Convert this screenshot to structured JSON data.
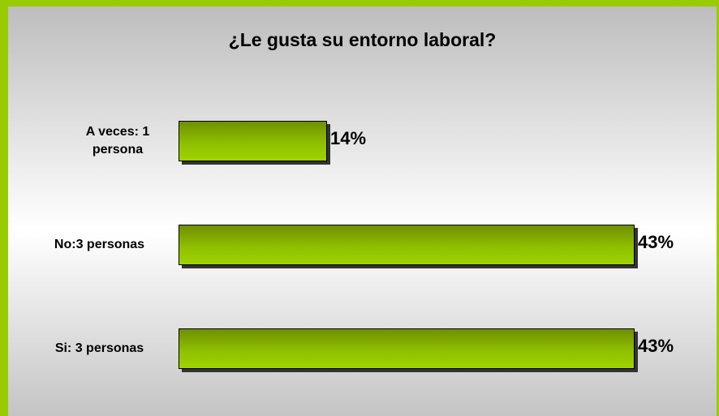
{
  "chart_data": {
    "type": "bar",
    "orientation": "horizontal",
    "title": "¿Le gusta su entorno laboral?",
    "categories": [
      "A veces: 1 persona",
      "No:3 personas",
      "Si: 3 personas"
    ],
    "values": [
      14,
      43,
      43
    ],
    "value_labels": [
      "14%",
      "43%",
      "43%"
    ],
    "color": "#99cc00"
  }
}
